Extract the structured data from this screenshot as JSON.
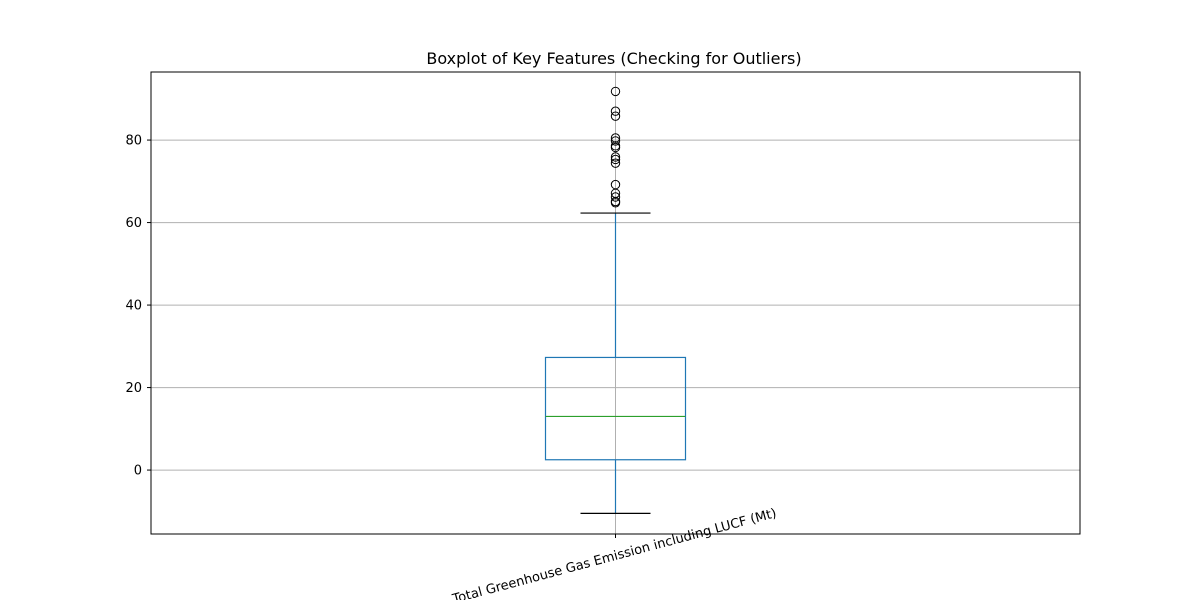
{
  "chart_data": {
    "type": "boxplot",
    "title": "Boxplot of Key Features (Checking for Outliers)",
    "categories": [
      "Total Greenhouse Gas Emission including LUCF (Mt)"
    ],
    "boxes": [
      {
        "name": "Total Greenhouse Gas Emission including LUCF (Mt)",
        "whisker_low": -10.5,
        "q1": 2.5,
        "median": 13.0,
        "q3": 27.3,
        "whisker_high": 62.3,
        "outliers": [
          64.8,
          65.1,
          66.2,
          67.1,
          69.2,
          74.4,
          75.3,
          75.9,
          78.2,
          78.6,
          79.8,
          80.5,
          85.8,
          87.0,
          91.8
        ]
      }
    ],
    "ylim": [
      -15.5,
      96.5
    ],
    "yticks": [
      0,
      20,
      40,
      60,
      80
    ],
    "ytick_labels": [
      "0",
      "20",
      "40",
      "60",
      "80"
    ],
    "grid": true,
    "colors": {
      "box": "#1f77b4",
      "median": "#2ca02c",
      "caps": "#000000",
      "outliers": "#000000",
      "grid": "#b0b0b0",
      "frame": "#000000"
    }
  }
}
